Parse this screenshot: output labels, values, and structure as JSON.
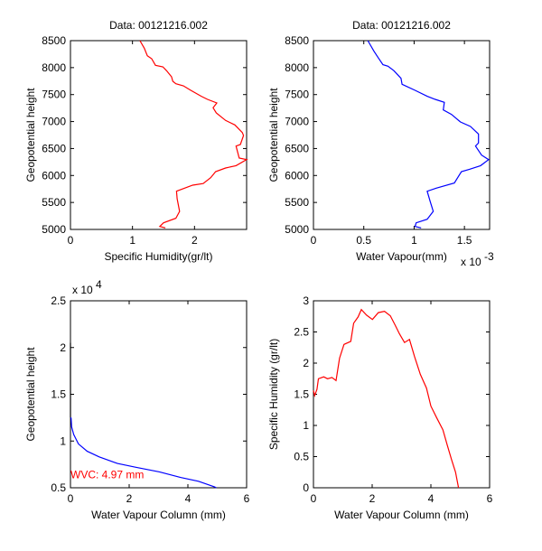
{
  "chart_data": [
    {
      "type": "line",
      "title": "Data: 00121216.002",
      "xlabel": "Specific Humidity(gr/lt)",
      "ylabel": "Geopotential height",
      "xlim": [
        0,
        2.84
      ],
      "ylim": [
        5000,
        8500
      ],
      "xticks": [
        0,
        1,
        2
      ],
      "xtick_labels": [
        "0",
        "1",
        "2"
      ],
      "yticks": [
        5000,
        5500,
        6000,
        6500,
        7000,
        7500,
        8000,
        8500
      ],
      "ytick_labels": [
        "5000",
        "5500",
        "6000",
        "6500",
        "7000",
        "7500",
        "8000",
        "8500"
      ],
      "exponent_label": "",
      "series": [
        {
          "name": "specific humidity",
          "color": "#ff0000",
          "x": [
            1.53,
            1.44,
            1.5,
            1.7,
            1.76,
            1.72,
            1.71,
            1.97,
            2.14,
            2.26,
            2.34,
            2.5,
            2.67,
            2.84,
            2.72,
            2.67,
            2.74,
            2.79,
            2.77,
            2.65,
            2.5,
            2.35,
            2.3,
            2.36,
            2.21,
            2.11,
            1.94,
            1.82,
            1.7,
            1.65,
            1.63,
            1.55,
            1.49,
            1.37,
            1.31,
            1.24,
            1.19,
            1.12
          ],
          "y": [
            5028,
            5056,
            5123,
            5207,
            5335,
            5570,
            5709,
            5820,
            5850,
            5960,
            6072,
            6139,
            6183,
            6295,
            6323,
            6546,
            6574,
            6742,
            6797,
            6937,
            7021,
            7160,
            7255,
            7345,
            7412,
            7468,
            7579,
            7663,
            7702,
            7747,
            7830,
            7942,
            8015,
            8043,
            8165,
            8221,
            8361,
            8500
          ]
        }
      ]
    },
    {
      "type": "line",
      "title": "Data: 00121216.002",
      "xlabel": "Water Vapour(mm)",
      "ylabel": "Geopotential height",
      "xlim": [
        0,
        1.75
      ],
      "ylim": [
        5000,
        8500
      ],
      "xticks": [
        0,
        0.5,
        1,
        1.5
      ],
      "xtick_labels": [
        "0",
        "0.5",
        "1",
        "1.5"
      ],
      "yticks": [
        5000,
        5500,
        6000,
        6500,
        7000,
        7500,
        8000,
        8500
      ],
      "ytick_labels": [
        "5000",
        "5500",
        "6000",
        "6500",
        "7000",
        "7500",
        "8000",
        "8500"
      ],
      "exponent_label": "x 10",
      "exponent_power": "-3",
      "series": [
        {
          "name": "water vapour",
          "color": "#0000ff",
          "x": [
            1.07,
            1.01,
            1.02,
            1.13,
            1.19,
            1.16,
            1.13,
            1.22,
            1.4,
            1.47,
            1.55,
            1.66,
            1.74,
            1.67,
            1.61,
            1.64,
            1.64,
            1.56,
            1.46,
            1.37,
            1.29,
            1.3,
            1.21,
            1.13,
            1.01,
            0.88,
            0.87,
            0.8,
            0.74,
            0.69,
            0.64,
            0.6,
            0.54
          ],
          "y": [
            5028,
            5056,
            5123,
            5190,
            5335,
            5514,
            5709,
            5765,
            5860,
            6072,
            6116,
            6183,
            6295,
            6379,
            6546,
            6602,
            6769,
            6909,
            6993,
            7133,
            7216,
            7356,
            7412,
            7468,
            7579,
            7691,
            7802,
            7942,
            8026,
            8054,
            8193,
            8305,
            8500
          ]
        }
      ]
    },
    {
      "type": "line",
      "title": "",
      "xlabel": "Water Vapour Column (mm)",
      "ylabel": "Geopotential height",
      "xlim": [
        0,
        6
      ],
      "ylim": [
        0.5,
        2.5
      ],
      "xticks": [
        0,
        2,
        4,
        6
      ],
      "xtick_labels": [
        "0",
        "2",
        "4",
        "6"
      ],
      "yticks": [
        0.5,
        1,
        1.5,
        2,
        2.5
      ],
      "ytick_labels": [
        "0.5",
        "1",
        "1.5",
        "2",
        "2.5"
      ],
      "exponent_label": "x 10",
      "exponent_power": "4",
      "annotation": "WVC: 4.97 mm",
      "annotation_color": "#ff0000",
      "series": [
        {
          "name": "upper column",
          "color": "#000000",
          "x": [
            0,
            0
          ],
          "y": [
            2.05,
            1.25
          ]
        },
        {
          "name": "water vapour column",
          "color": "#0000ff",
          "x": [
            0,
            0.02,
            0.04,
            0.11,
            0.27,
            0.57,
            0.98,
            1.6,
            2.21,
            3.03,
            3.75,
            4.36,
            4.91,
            4.97
          ],
          "y": [
            1.25,
            1.246,
            1.15,
            1.07,
            0.97,
            0.89,
            0.83,
            0.76,
            0.72,
            0.67,
            0.61,
            0.57,
            0.51,
            0.5
          ]
        }
      ]
    },
    {
      "type": "line",
      "title": "",
      "xlabel": "Water Vapour Column (mm)",
      "ylabel": "Specific Humidity (gr/lt)",
      "xlim": [
        0,
        6
      ],
      "ylim": [
        0,
        3
      ],
      "xticks": [
        0,
        2,
        4,
        6
      ],
      "xtick_labels": [
        "0",
        "2",
        "4",
        "6"
      ],
      "yticks": [
        0,
        0.5,
        1,
        1.5,
        2,
        2.5,
        3
      ],
      "ytick_labels": [
        "0",
        "0.5",
        "1",
        "1.5",
        "2",
        "2.5",
        "3"
      ],
      "exponent_label": "",
      "series": [
        {
          "name": "specific humidity vs column",
          "color": "#ff0000",
          "x": [
            0,
            0.04,
            0.12,
            0.17,
            0.35,
            0.48,
            0.63,
            0.77,
            0.89,
            1.04,
            1.27,
            1.37,
            1.52,
            1.63,
            1.81,
            2.01,
            2.21,
            2.42,
            2.62,
            2.78,
            2.93,
            3.1,
            3.27,
            3.44,
            3.64,
            3.85,
            4.0,
            4.2,
            4.41,
            4.56,
            4.71,
            4.84,
            4.94
          ],
          "y": [
            1.56,
            1.48,
            1.58,
            1.75,
            1.78,
            1.75,
            1.77,
            1.72,
            2.08,
            2.3,
            2.35,
            2.64,
            2.74,
            2.86,
            2.77,
            2.7,
            2.81,
            2.83,
            2.76,
            2.61,
            2.47,
            2.33,
            2.38,
            2.11,
            1.82,
            1.6,
            1.31,
            1.12,
            0.93,
            0.68,
            0.44,
            0.25,
            0
          ]
        }
      ]
    }
  ]
}
